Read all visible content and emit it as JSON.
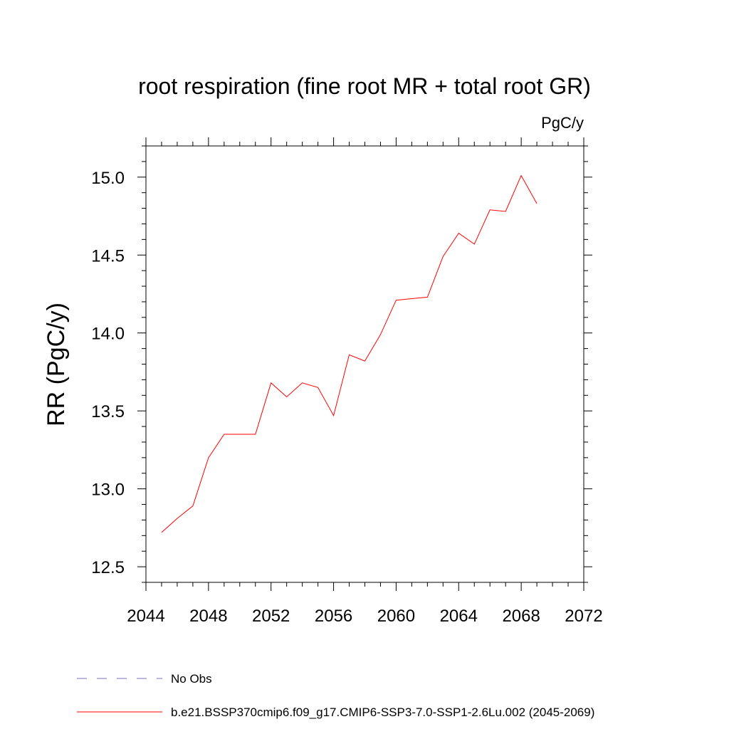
{
  "chart_data": {
    "type": "line",
    "title": "root respiration (fine root MR + total root GR)",
    "units": "PgC/y",
    "ylabel": "RR  (PgC/y)",
    "xlabel": "",
    "xlim": [
      2044,
      2072
    ],
    "ylim": [
      12.4,
      15.2
    ],
    "x_ticks": [
      2044,
      2048,
      2052,
      2056,
      2060,
      2064,
      2068,
      2072
    ],
    "x_tick_labels": [
      "2044",
      "2048",
      "2052",
      "2056",
      "2060",
      "2064",
      "2068",
      "2072"
    ],
    "y_ticks": [
      12.5,
      13.0,
      13.5,
      14.0,
      14.5,
      15.0
    ],
    "y_tick_labels": [
      "12.5",
      "13.0",
      "13.5",
      "14.0",
      "14.5",
      "15.0"
    ],
    "grid": false,
    "legend_position": "bottom",
    "series": [
      {
        "name": "b.e21.BSSP370cmip6.f09_g17.CMIP6-SSP3-7.0-SSP1-2.6Lu.002 (2045-2069)",
        "color": "#ff0000",
        "style": "solid",
        "x": [
          2045,
          2046,
          2047,
          2048,
          2049,
          2050,
          2051,
          2052,
          2053,
          2054,
          2055,
          2056,
          2057,
          2058,
          2059,
          2060,
          2061,
          2062,
          2063,
          2064,
          2065,
          2066,
          2067,
          2068,
          2069
        ],
        "y": [
          12.72,
          12.81,
          12.89,
          13.2,
          13.35,
          13.35,
          13.35,
          13.68,
          13.59,
          13.68,
          13.65,
          13.47,
          13.86,
          13.82,
          13.99,
          14.21,
          14.22,
          14.23,
          14.49,
          14.64,
          14.57,
          14.79,
          14.78,
          15.01,
          14.83
        ]
      }
    ],
    "legend": [
      {
        "label": "No Obs",
        "color": "#7a6fb8",
        "style": "dashed"
      },
      {
        "label": "b.e21.BSSP370cmip6.f09_g17.CMIP6-SSP3-7.0-SSP1-2.6Lu.002 (2045-2069)",
        "color": "#ff0000",
        "style": "solid"
      }
    ]
  }
}
